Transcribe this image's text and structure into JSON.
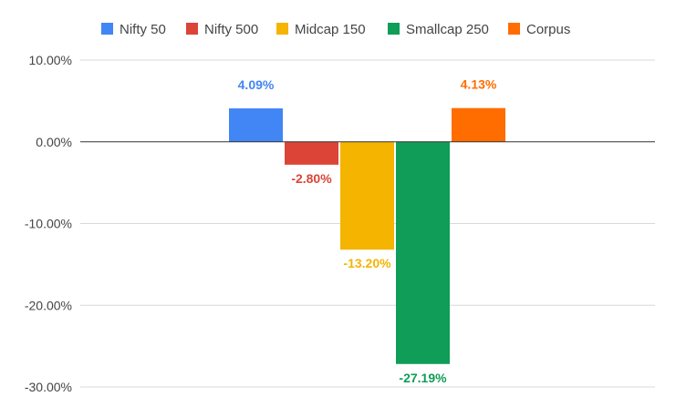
{
  "chart_data": {
    "type": "bar",
    "title": "",
    "xlabel": "",
    "ylabel": "",
    "ylim": [
      -30,
      10
    ],
    "y_ticks": [
      {
        "value": 10,
        "label": "10.00%"
      },
      {
        "value": 0,
        "label": "0.00%"
      },
      {
        "value": -10,
        "label": "-10.00%"
      },
      {
        "value": -20,
        "label": "-20.00%"
      },
      {
        "value": -30,
        "label": "-30.00%"
      }
    ],
    "legend_position": "top",
    "grid": true,
    "series": [
      {
        "name": "Nifty 50",
        "value": 4.09,
        "label": "4.09%",
        "color": "#4285F4"
      },
      {
        "name": "Nifty 500",
        "value": -2.8,
        "label": "-2.80%",
        "color": "#DB4437"
      },
      {
        "name": "Midcap 150",
        "value": -13.2,
        "label": "-13.20%",
        "color": "#F4B400"
      },
      {
        "name": "Smallcap 250",
        "value": -27.19,
        "label": "-27.19%",
        "color": "#0F9D58"
      },
      {
        "name": "Corpus",
        "value": 4.13,
        "label": "4.13%",
        "color": "#FF6D01"
      }
    ]
  }
}
